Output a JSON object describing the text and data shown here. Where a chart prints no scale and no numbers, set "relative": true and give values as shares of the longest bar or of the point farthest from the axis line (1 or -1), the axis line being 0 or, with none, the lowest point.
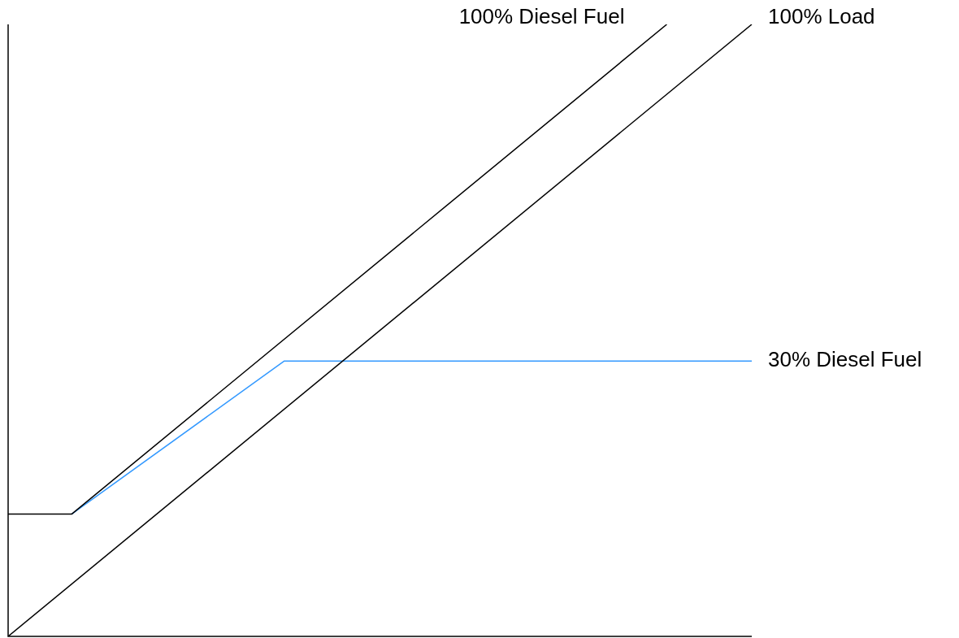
{
  "chart_data": {
    "type": "line",
    "relative": true,
    "marker": "none",
    "legend": false,
    "categories": [
      null,
      null,
      null,
      null,
      null,
      null,
      null,
      null,
      null,
      null,
      null,
      null,
      null,
      null,
      null,
      null,
      null,
      null,
      null,
      null,
      null,
      null,
      null,
      null,
      null,
      null,
      null,
      null,
      null,
      null,
      null,
      null,
      null,
      null,
      null,
      null
    ],
    "series": [
      {
        "name": "100% Diesel Fuel",
        "color": "#000000",
        "values": [
          0.2,
          null,
          null,
          0.2,
          null,
          null,
          null,
          null,
          null,
          null,
          null,
          null,
          null,
          null,
          null,
          null,
          null,
          null,
          null,
          null,
          null,
          null,
          null,
          null,
          null,
          null,
          null,
          null,
          null,
          null,
          null,
          1,
          null,
          null,
          null,
          null
        ]
      },
      {
        "name": "100% Load",
        "color": "#000000",
        "values": [
          0,
          null,
          null,
          null,
          null,
          null,
          null,
          null,
          null,
          null,
          null,
          null,
          null,
          null,
          null,
          null,
          null,
          null,
          null,
          null,
          null,
          null,
          null,
          null,
          null,
          null,
          null,
          null,
          null,
          null,
          null,
          null,
          null,
          null,
          null,
          1
        ]
      },
      {
        "name": "30% Diesel Fuel",
        "color": "#3399ff",
        "values": [
          null,
          null,
          null,
          0.2,
          null,
          null,
          null,
          null,
          null,
          null,
          null,
          null,
          null,
          0.45,
          null,
          null,
          null,
          null,
          null,
          null,
          null,
          null,
          null,
          null,
          null,
          null,
          null,
          null,
          null,
          null,
          null,
          null,
          null,
          null,
          null,
          0.45
        ]
      }
    ]
  }
}
